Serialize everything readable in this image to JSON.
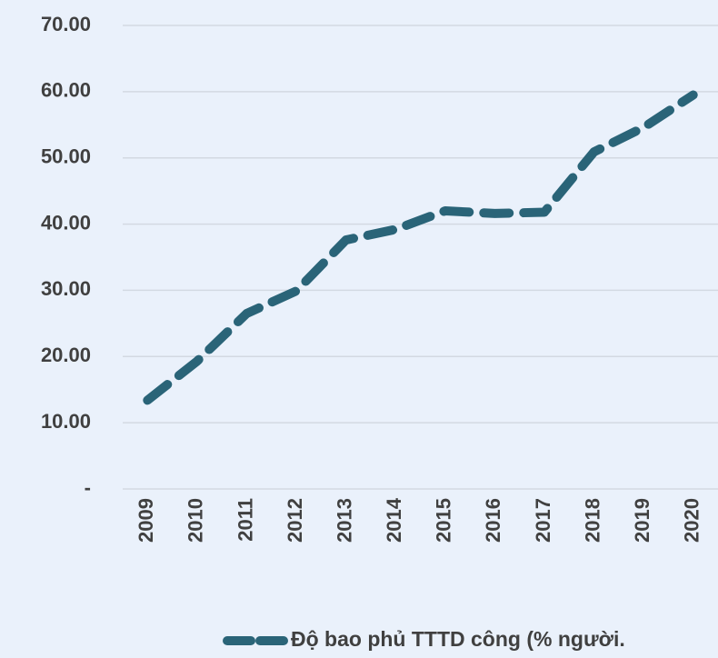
{
  "chart_data": {
    "type": "line",
    "categories": [
      "2009",
      "2010",
      "2011",
      "2012",
      "2013",
      "2014",
      "2015",
      "2016",
      "2017",
      "2018",
      "2019",
      "2020"
    ],
    "series": [
      {
        "name": "Độ bao phủ TTTD công (% người.",
        "color": "#2a6478",
        "values": [
          13.4,
          19.3,
          26.5,
          29.9,
          37.6,
          39.2,
          42.0,
          41.6,
          41.8,
          50.9,
          54.6,
          59.5
        ]
      }
    ],
    "ylim": [
      0,
      70
    ],
    "yticks": [
      {
        "value": 0,
        "label": "-"
      },
      {
        "value": 10,
        "label": "10.00"
      },
      {
        "value": 20,
        "label": "20.00"
      },
      {
        "value": 30,
        "label": "30.00"
      },
      {
        "value": 40,
        "label": "40.00"
      },
      {
        "value": 50,
        "label": "50.00"
      },
      {
        "value": 60,
        "label": "60.00"
      },
      {
        "value": 70,
        "label": "70.00"
      }
    ],
    "grid": true,
    "legend": "bottom"
  }
}
